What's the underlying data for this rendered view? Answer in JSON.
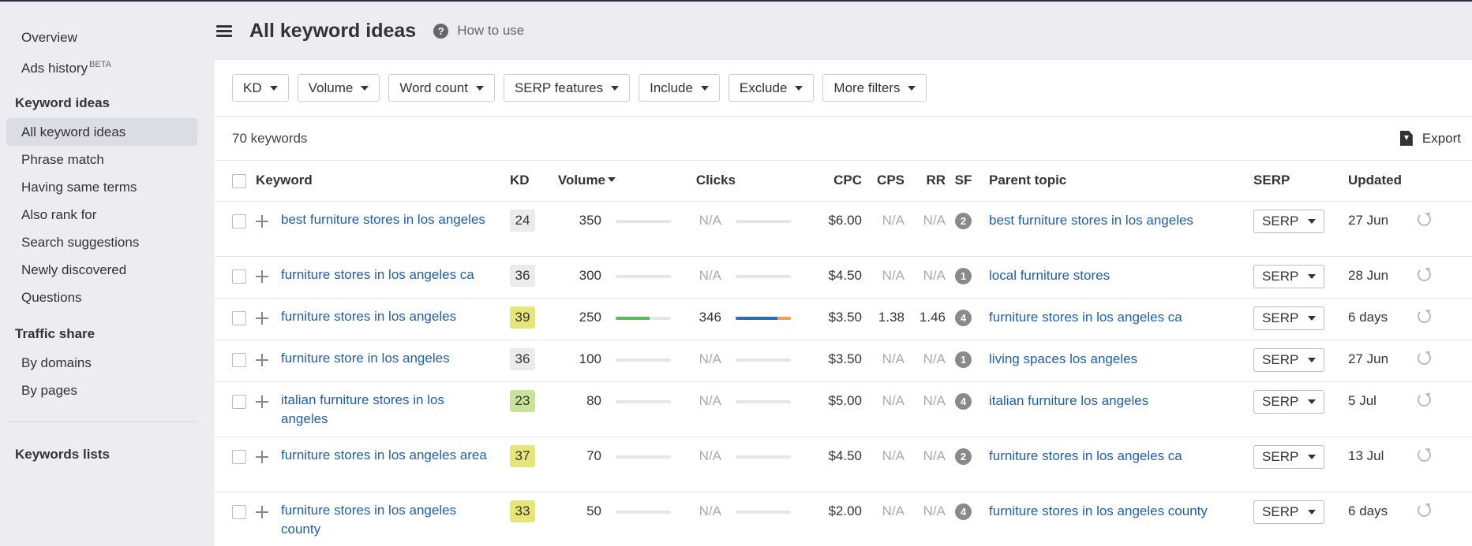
{
  "sidebar": {
    "top_items": [
      {
        "label": "Overview"
      },
      {
        "label": "Ads history",
        "badge": "BETA"
      }
    ],
    "sections": [
      {
        "heading": "Keyword ideas",
        "items": [
          {
            "label": "All keyword ideas",
            "active": true
          },
          {
            "label": "Phrase match"
          },
          {
            "label": "Having same terms"
          },
          {
            "label": "Also rank for"
          },
          {
            "label": "Search suggestions"
          },
          {
            "label": "Newly discovered"
          },
          {
            "label": "Questions"
          }
        ]
      },
      {
        "heading": "Traffic share",
        "items": [
          {
            "label": "By domains"
          },
          {
            "label": "By pages"
          }
        ]
      }
    ],
    "bottom_heading": "Keywords lists"
  },
  "header": {
    "title": "All keyword ideas",
    "how_to": "How to use",
    "help_glyph": "?"
  },
  "filters": [
    "KD",
    "Volume",
    "Word count",
    "SERP features",
    "Include",
    "Exclude",
    "More filters"
  ],
  "summary": {
    "count": "70 keywords",
    "export": "Export"
  },
  "table": {
    "columns": {
      "keyword": "Keyword",
      "kd": "KD",
      "volume": "Volume",
      "clicks": "Clicks",
      "cpc": "CPC",
      "cps": "CPS",
      "rr": "RR",
      "sf": "SF",
      "parent": "Parent topic",
      "serp": "SERP",
      "updated": "Updated"
    },
    "rows": [
      {
        "keyword": "best furniture stores in los angeles",
        "kd": "24",
        "kd_color": "#ebebeb",
        "volume": "350",
        "volume_bar": 0,
        "clicks": "N/A",
        "clicks_bar": [
          0,
          0
        ],
        "cpc": "$6.00",
        "cps": "N/A",
        "rr": "N/A",
        "sf": "2",
        "parent": "best furniture stores in los angeles",
        "serp": "SERP",
        "updated": "27 Jun",
        "lines": 2
      },
      {
        "keyword": "furniture stores in los angeles ca",
        "kd": "36",
        "kd_color": "#ebebeb",
        "volume": "300",
        "volume_bar": 0,
        "clicks": "N/A",
        "clicks_bar": [
          0,
          0
        ],
        "cpc": "$4.50",
        "cps": "N/A",
        "rr": "N/A",
        "sf": "1",
        "parent": "local furniture stores",
        "serp": "SERP",
        "updated": "28 Jun",
        "lines": 1
      },
      {
        "keyword": "furniture stores in los angeles",
        "kd": "39",
        "kd_color": "#e5e57a",
        "volume": "250",
        "volume_bar": 0.62,
        "clicks": "346",
        "clicks_bar": [
          0.75,
          0.25
        ],
        "cpc": "$3.50",
        "cps": "1.38",
        "rr": "1.46",
        "sf": "4",
        "parent": "furniture stores in los angeles ca",
        "serp": "SERP",
        "updated": "6 days",
        "lines": 1
      },
      {
        "keyword": "furniture store in los angeles",
        "kd": "36",
        "kd_color": "#ebebeb",
        "volume": "100",
        "volume_bar": 0,
        "clicks": "N/A",
        "clicks_bar": [
          0,
          0
        ],
        "cpc": "$3.50",
        "cps": "N/A",
        "rr": "N/A",
        "sf": "1",
        "parent": "living spaces los angeles",
        "serp": "SERP",
        "updated": "27 Jun",
        "lines": 1
      },
      {
        "keyword": "italian furniture stores in los angeles",
        "kd": "23",
        "kd_color": "#c8e29a",
        "volume": "80",
        "volume_bar": 0,
        "clicks": "N/A",
        "clicks_bar": [
          0,
          0
        ],
        "cpc": "$5.00",
        "cps": "N/A",
        "rr": "N/A",
        "sf": "4",
        "parent": "italian furniture los angeles",
        "serp": "SERP",
        "updated": "5 Jul",
        "lines": 2
      },
      {
        "keyword": "furniture stores in los angeles area",
        "kd": "37",
        "kd_color": "#e5e57a",
        "volume": "70",
        "volume_bar": 0,
        "clicks": "N/A",
        "clicks_bar": [
          0,
          0
        ],
        "cpc": "$4.50",
        "cps": "N/A",
        "rr": "N/A",
        "sf": "2",
        "parent": "furniture stores in los angeles ca",
        "serp": "SERP",
        "updated": "13 Jul",
        "lines": 2
      },
      {
        "keyword": "furniture stores in los angeles county",
        "kd": "33",
        "kd_color": "#e5e57a",
        "volume": "50",
        "volume_bar": 0,
        "clicks": "N/A",
        "clicks_bar": [
          0,
          0
        ],
        "cpc": "$2.00",
        "cps": "N/A",
        "rr": "N/A",
        "sf": "4",
        "parent": "furniture stores in los angeles county",
        "serp": "SERP",
        "updated": "6 days",
        "lines": 2
      }
    ]
  },
  "colors": {
    "link": "#1f5ea8",
    "volume_bar": "#5cb85c",
    "clicks_bar_organic": "#2a6db5",
    "clicks_bar_paid": "#f0a050",
    "na_text": "#aaaaaa"
  }
}
